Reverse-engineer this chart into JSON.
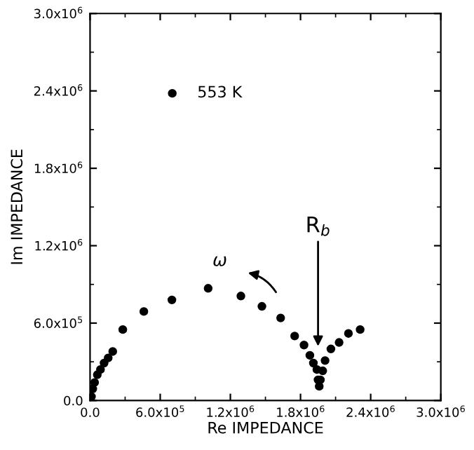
{
  "chart_data": {
    "type": "scatter",
    "xlabel": "Re IMPEDANCE",
    "ylabel": "Im IMPEDANCE",
    "series": [
      {
        "name": "553 K",
        "color": "#000000",
        "x": [
          12000,
          23000,
          39000,
          62000,
          89000,
          120000,
          155000,
          194000,
          280000,
          460000,
          700000,
          1010000,
          1290000,
          1470000,
          1630000,
          1750000,
          1830000,
          1880000,
          1910000,
          1940000,
          1950000,
          1960000,
          1970000,
          1990000,
          2010000,
          2060000,
          2130000,
          2210000,
          2310000
        ],
        "values": [
          30000,
          90000,
          140000,
          200000,
          240000,
          290000,
          330000,
          380000,
          550000,
          690000,
          780000,
          870000,
          810000,
          730000,
          640000,
          500000,
          430000,
          350000,
          290000,
          240000,
          160000,
          110000,
          160000,
          230000,
          310000,
          400000,
          450000,
          520000,
          550000
        ]
      }
    ],
    "marker": "circle",
    "legend": "top left",
    "grid": false,
    "xlim": [
      0,
      3000000
    ],
    "ylim": [
      0,
      3000000
    ],
    "xticks": [
      {
        "value": 0,
        "label": "0.0"
      },
      {
        "value": 600000,
        "label": "6.0x10$^{5}$"
      },
      {
        "value": 1200000,
        "label": "1.2x10$^{6}$"
      },
      {
        "value": 1800000,
        "label": "1.8x10$^{6}$"
      },
      {
        "value": 2400000,
        "label": "2.4x10$^{6}$"
      },
      {
        "value": 3000000,
        "label": "3.0x10$^{6}$"
      }
    ],
    "yticks": [
      {
        "value": 0,
        "label": "0.0"
      },
      {
        "value": 600000,
        "label": "6.0x10$^{5}$"
      },
      {
        "value": 1200000,
        "label": "1.2x10$^{6}$"
      },
      {
        "value": 1800000,
        "label": "1.8x10$^{6}$"
      },
      {
        "value": 2400000,
        "label": "2.4x10$^{6}$"
      },
      {
        "value": 3000000,
        "label": "3.0x10$^{6}$"
      }
    ],
    "annotations": [
      "R$_{b}$",
      "ω"
    ]
  }
}
